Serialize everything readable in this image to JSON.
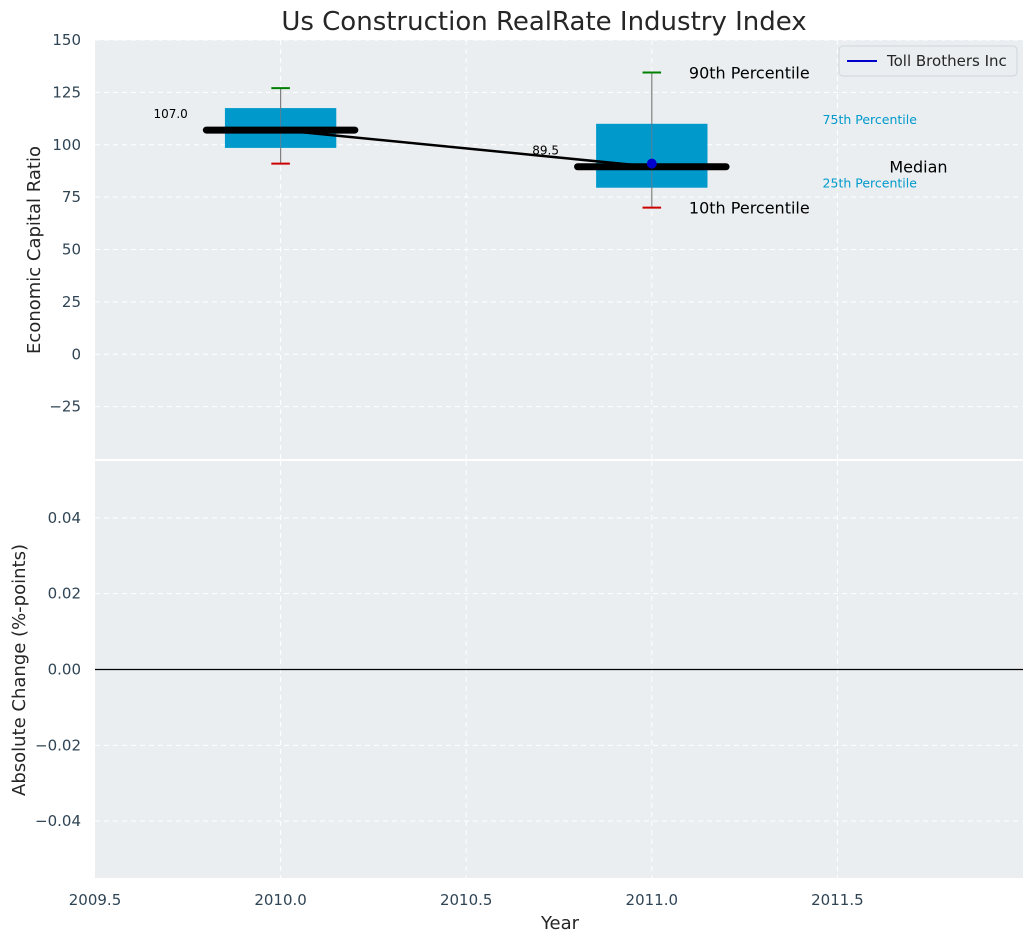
{
  "chart_data": {
    "type": "box",
    "title": "Us Construction RealRate Industry Index",
    "xlabel": "Year",
    "xlim": [
      2009.5,
      2012.0
    ],
    "x_ticks": [
      2009.5,
      2010.0,
      2010.5,
      2011.0,
      2011.5
    ],
    "x_tick_labels": [
      "2009.5",
      "2010.0",
      "2010.5",
      "2011.0",
      "2011.5"
    ],
    "grid": true,
    "legend": {
      "location": "top-right",
      "entries": [
        {
          "label": "Toll Brothers Inc",
          "color": "#0000cc"
        }
      ]
    },
    "colors": {
      "box": "#0099cc",
      "median": "#000000",
      "p90_cap": "#008000",
      "p10_cap": "#cc0000",
      "company": "#0000cc",
      "panel_bg": "#eaeef0",
      "axis_text": "#2f4454"
    },
    "top_panel": {
      "ylabel": "Economic Capital Ratio",
      "ylim": [
        -50,
        150
      ],
      "y_ticks": [
        -25,
        0,
        25,
        50,
        75,
        100,
        125,
        150
      ],
      "y_tick_labels": [
        "−25",
        "0",
        "25",
        "50",
        "75",
        "100",
        "125",
        "150"
      ],
      "boxes": [
        {
          "x": 2010.0,
          "p10": 91,
          "p25": 98.5,
          "median": 107.0,
          "p75": 117.5,
          "p90": 127
        },
        {
          "x": 2011.0,
          "p10": 70,
          "p25": 79.5,
          "median": 89.5,
          "p75": 110,
          "p90": 134.5
        }
      ],
      "median_labels": [
        {
          "x": 2010.0,
          "value": 107.0,
          "text": "107.0"
        },
        {
          "x": 2011.0,
          "value": 89.5,
          "text": "89.5"
        }
      ],
      "company_series": {
        "name": "Toll Brothers Inc",
        "x": [
          2010.0,
          2011.0
        ],
        "y": [
          107.0,
          89.5
        ]
      },
      "company_point": {
        "x": 2011.0,
        "y": 91
      },
      "annotations": [
        {
          "text": "90th Percentile",
          "x": 2011.1,
          "y": 134.5,
          "color": "#000000"
        },
        {
          "text": "75th Percentile",
          "x": 2011.46,
          "y": 110,
          "color": "#0099cc"
        },
        {
          "text": "Median",
          "x": 2011.64,
          "y": 89.5,
          "color": "#000000"
        },
        {
          "text": "25th Percentile",
          "x": 2011.46,
          "y": 79.5,
          "color": "#0099cc"
        },
        {
          "text": "10th Percentile",
          "x": 2011.1,
          "y": 70,
          "color": "#000000"
        }
      ]
    },
    "bottom_panel": {
      "ylabel": "Absolute Change (%-points)",
      "ylim": [
        -0.055,
        0.055
      ],
      "y_ticks": [
        -0.04,
        -0.02,
        0.0,
        0.02,
        0.04
      ],
      "y_tick_labels": [
        "−0.04",
        "−0.02",
        "0.00",
        "0.02",
        "0.04"
      ],
      "zero_line": 0.0
    }
  }
}
